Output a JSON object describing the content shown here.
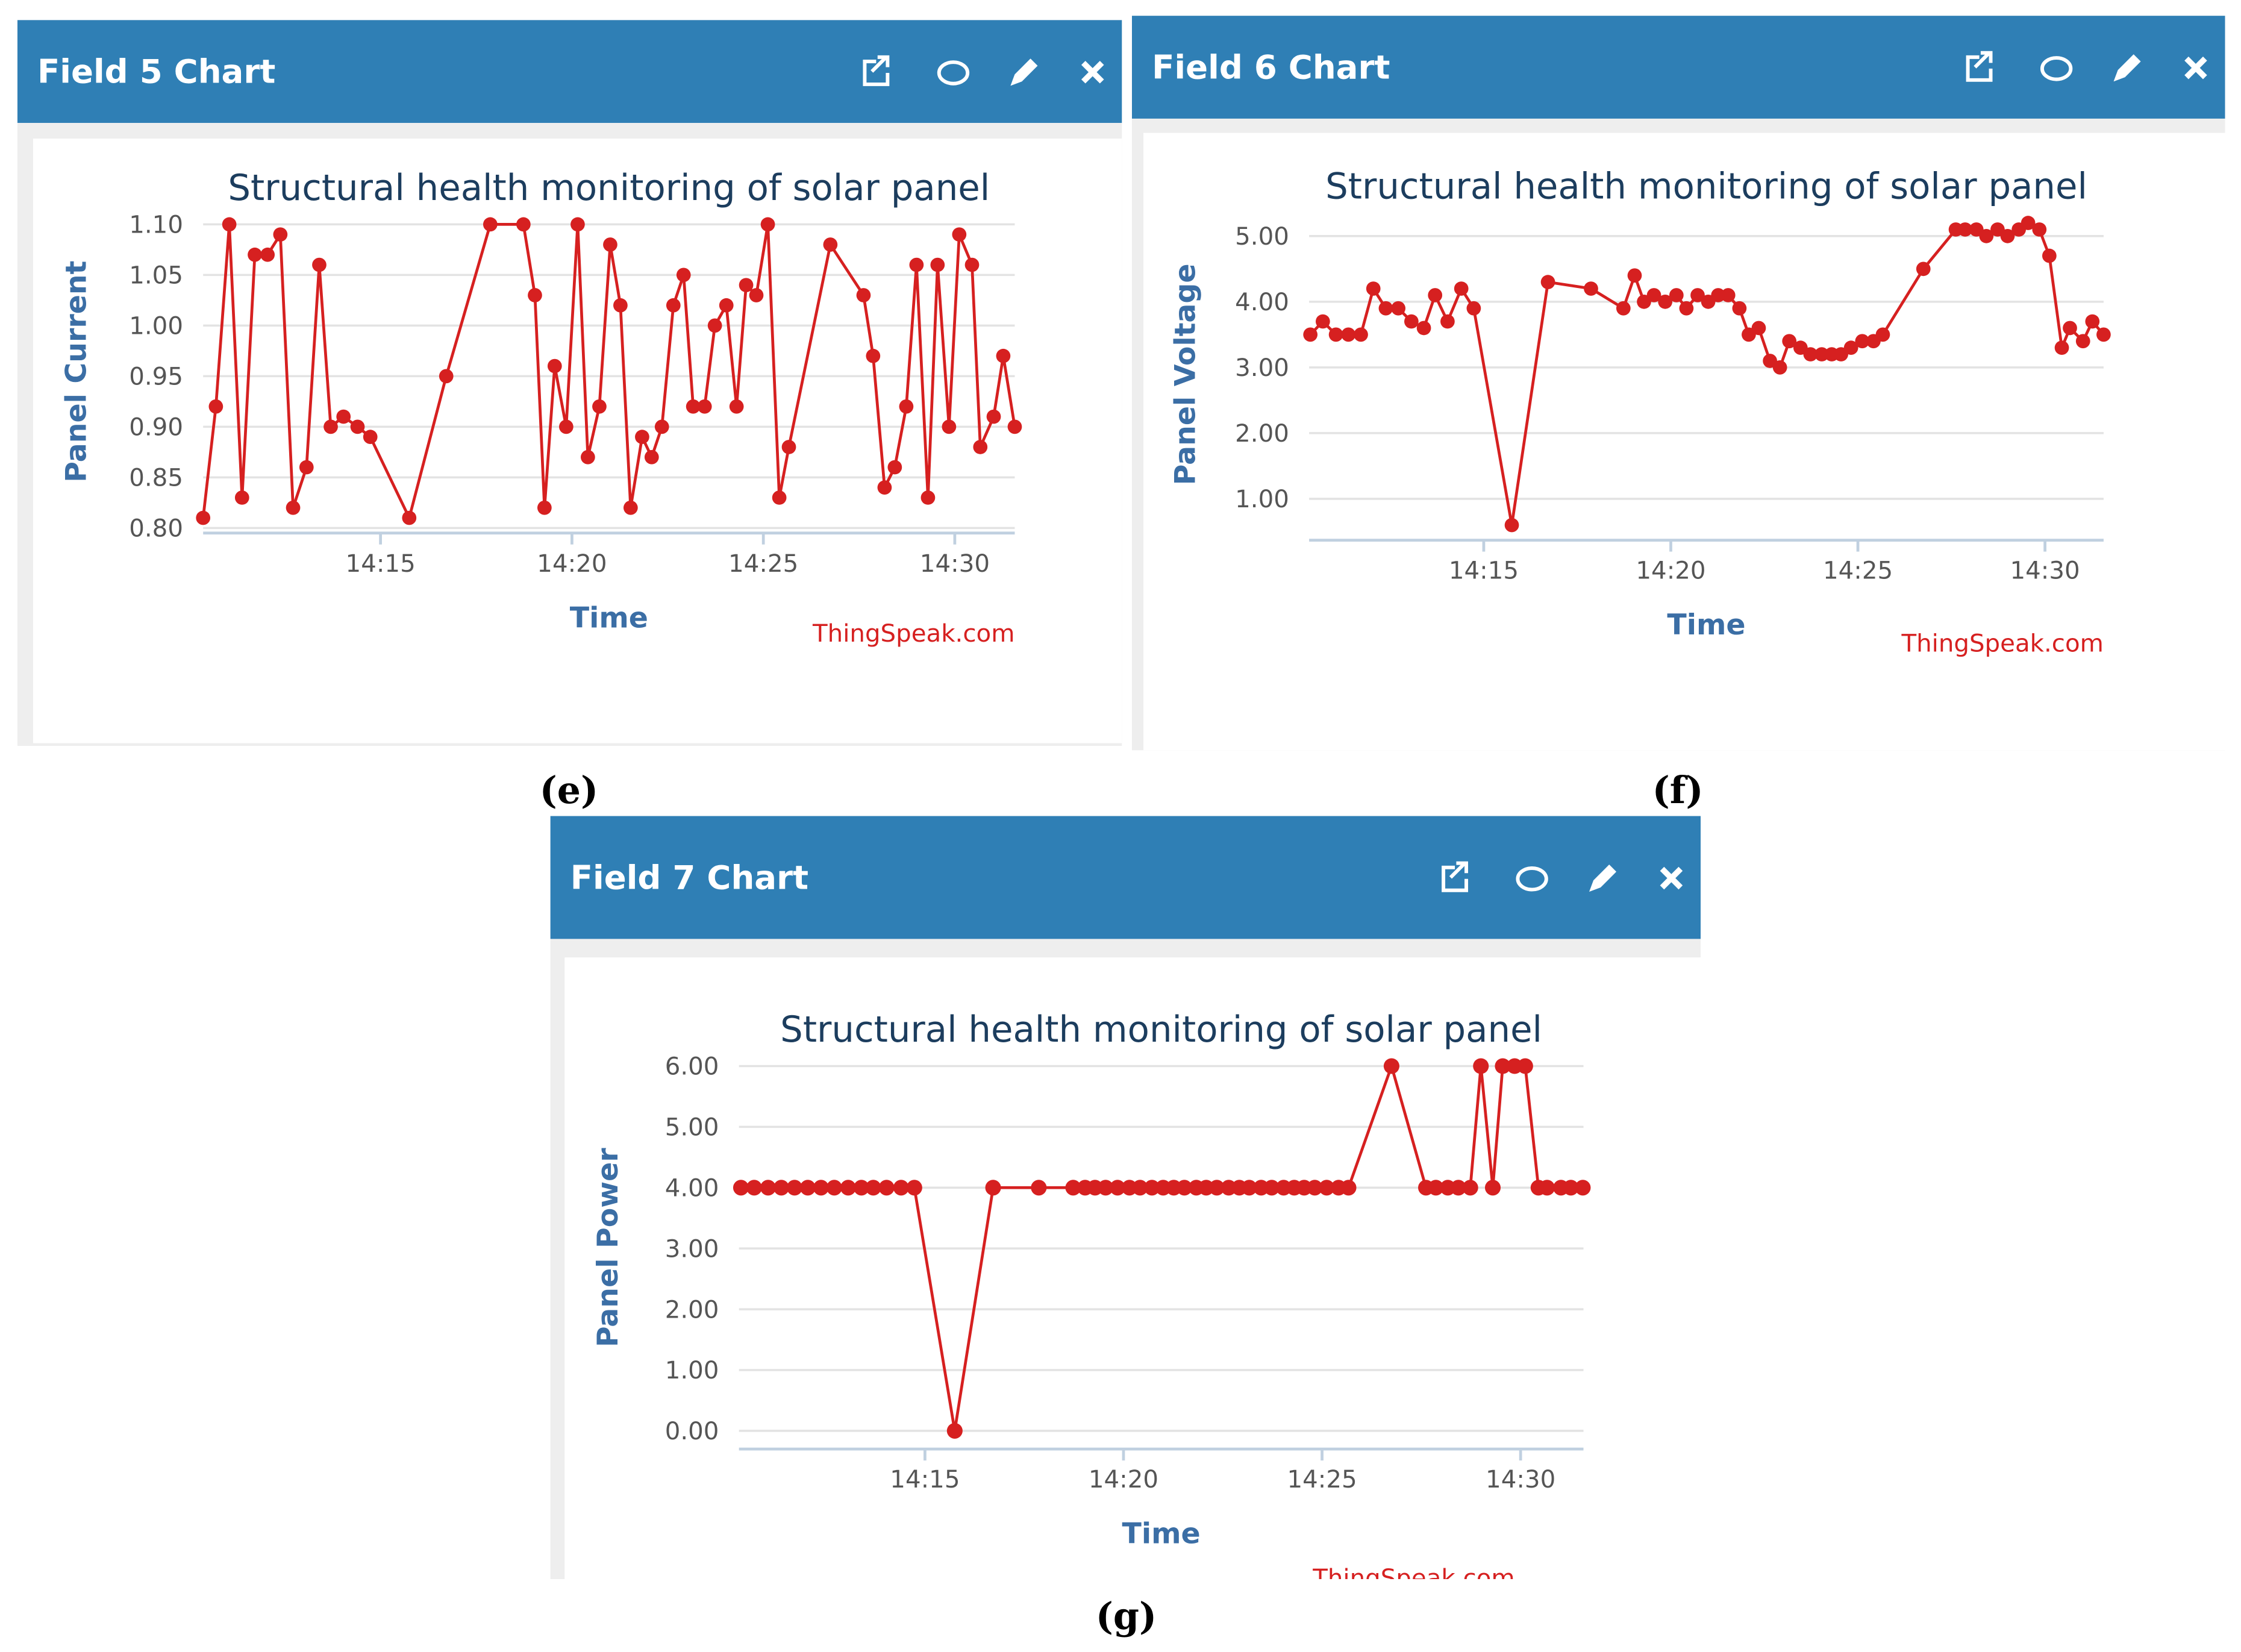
{
  "panels": [
    {
      "header": "Field 5 Chart",
      "caption": "(e)"
    },
    {
      "header": "Field 6 Chart",
      "caption": "(f)"
    },
    {
      "header": "Field 7 Chart",
      "caption": "(g)"
    }
  ],
  "chart_data": [
    {
      "type": "line",
      "title": "Structural health monitoring of solar panel",
      "x_label": "Time",
      "y_label": "Panel Current",
      "credit": "ThingSpeak.com",
      "color": "#d62020",
      "grid": true,
      "x": [
        "14:10:22",
        "14:10:42",
        "14:11:03",
        "14:11:23",
        "14:11:43",
        "14:12:03",
        "14:12:23",
        "14:12:43",
        "14:13:04",
        "14:13:24",
        "14:13:42",
        "14:14:02",
        "14:14:24",
        "14:14:44",
        "14:15:45",
        "14:16:43",
        "14:17:52",
        "14:18:44",
        "14:19:02",
        "14:19:17",
        "14:19:33",
        "14:19:51",
        "14:20:09",
        "14:20:25",
        "14:20:43",
        "14:21:00",
        "14:21:16",
        "14:21:32",
        "14:21:50",
        "14:22:05",
        "14:22:21",
        "14:22:39",
        "14:22:55",
        "14:23:10",
        "14:23:28",
        "14:23:44",
        "14:24:02",
        "14:24:18",
        "14:24:33",
        "14:24:49",
        "14:25:07",
        "14:25:25",
        "14:25:40",
        "14:26:45",
        "14:27:37",
        "14:27:52",
        "14:28:10",
        "14:28:26",
        "14:28:44",
        "14:29:00",
        "14:29:18",
        "14:29:33",
        "14:29:51",
        "14:30:07",
        "14:30:27",
        "14:30:40",
        "14:31:01",
        "14:31:16",
        "14:31:34"
      ],
      "values": [
        0.81,
        0.92,
        1.1,
        0.83,
        1.07,
        1.07,
        1.09,
        0.82,
        0.86,
        1.06,
        0.9,
        0.91,
        0.9,
        0.89,
        0.81,
        0.95,
        1.1,
        1.1,
        1.03,
        0.82,
        0.96,
        0.9,
        1.1,
        0.87,
        0.92,
        1.08,
        1.02,
        0.82,
        0.89,
        0.87,
        0.9,
        1.02,
        1.05,
        0.92,
        0.92,
        1.0,
        1.02,
        0.92,
        1.04,
        1.03,
        1.1,
        0.83,
        0.88,
        1.08,
        1.03,
        0.97,
        0.84,
        0.86,
        0.92,
        1.06,
        0.83,
        1.06,
        0.9,
        1.09,
        1.06,
        0.88,
        0.91,
        0.97,
        0.9
      ],
      "xlim": [
        "14:10:22",
        "14:31:34"
      ],
      "xticks": [
        "14:15",
        "14:20",
        "14:25",
        "14:30"
      ],
      "ylim": [
        0.795,
        1.1
      ],
      "yticks": [
        {
          "value": 0.8,
          "label": "0.80"
        },
        0.85,
        {
          "value": 0.9,
          "label": "0.90"
        },
        0.95,
        {
          "value": 1,
          "label": "1.00"
        },
        1.05,
        {
          "value": 1.1,
          "label": "1.10"
        }
      ]
    },
    {
      "type": "line",
      "title": "Structural health monitoring of solar panel",
      "x_label": "Time",
      "y_label": "Panel Voltage",
      "credit": "ThingSpeak.com",
      "color": "#d62020",
      "grid": true,
      "x": [
        "14:10:22",
        "14:10:42",
        "14:11:03",
        "14:11:23",
        "14:11:43",
        "14:12:03",
        "14:12:23",
        "14:12:43",
        "14:13:04",
        "14:13:24",
        "14:13:42",
        "14:14:02",
        "14:14:24",
        "14:14:44",
        "14:15:45",
        "14:16:43",
        "14:17:52",
        "14:18:44",
        "14:19:02",
        "14:19:17",
        "14:19:33",
        "14:19:51",
        "14:20:09",
        "14:20:25",
        "14:20:43",
        "14:21:00",
        "14:21:16",
        "14:21:32",
        "14:21:50",
        "14:22:05",
        "14:22:21",
        "14:22:39",
        "14:22:55",
        "14:23:10",
        "14:23:28",
        "14:23:44",
        "14:24:02",
        "14:24:18",
        "14:24:33",
        "14:24:49",
        "14:25:07",
        "14:25:25",
        "14:25:40",
        "14:26:45",
        "14:27:37",
        "14:27:52",
        "14:28:10",
        "14:28:26",
        "14:28:44",
        "14:29:00",
        "14:29:18",
        "14:29:33",
        "14:29:51",
        "14:30:07",
        "14:30:27",
        "14:30:40",
        "14:31:01",
        "14:31:16",
        "14:31:34"
      ],
      "values": [
        3.5,
        3.7,
        3.5,
        3.5,
        3.5,
        4.2,
        3.9,
        3.9,
        3.7,
        3.6,
        4.1,
        3.7,
        4.2,
        3.9,
        0.6,
        4.3,
        4.2,
        3.9,
        4.4,
        4.0,
        4.1,
        4.0,
        4.1,
        3.9,
        4.1,
        4.0,
        4.1,
        4.1,
        3.9,
        3.5,
        3.6,
        3.1,
        3.0,
        3.4,
        3.3,
        3.2,
        3.2,
        3.2,
        3.2,
        3.3,
        3.4,
        3.4,
        3.5,
        4.5,
        5.1,
        5.1,
        5.1,
        5.0,
        5.1,
        5.0,
        5.1,
        5.2,
        5.1,
        4.7,
        3.3,
        3.6,
        3.4,
        3.7,
        3.5
      ],
      "xlim": [
        "14:10:20",
        "14:31:34"
      ],
      "xticks": [
        "14:15",
        "14:20",
        "14:25",
        "14:30"
      ],
      "ylim": [
        0.37,
        5.2
      ],
      "yticks": [
        {
          "value": 1,
          "label": "1.00"
        },
        {
          "value": 2,
          "label": "2.00"
        },
        {
          "value": 3,
          "label": "3.00"
        },
        {
          "value": 4,
          "label": "4.00"
        },
        {
          "value": 5,
          "label": "5.00"
        }
      ]
    },
    {
      "type": "line",
      "title": "Structural health monitoring of solar panel",
      "x_label": "Time",
      "y_label": "Panel Power",
      "credit": "ThingSpeak.com",
      "color": "#d62020",
      "grid": true,
      "x": [
        "14:10:22",
        "14:10:42",
        "14:11:03",
        "14:11:23",
        "14:11:43",
        "14:12:03",
        "14:12:23",
        "14:12:43",
        "14:13:04",
        "14:13:24",
        "14:13:42",
        "14:14:02",
        "14:14:24",
        "14:14:44",
        "14:15:45",
        "14:16:43",
        "14:17:52",
        "14:18:44",
        "14:19:02",
        "14:19:17",
        "14:19:33",
        "14:19:51",
        "14:20:09",
        "14:20:25",
        "14:20:43",
        "14:21:00",
        "14:21:16",
        "14:21:32",
        "14:21:50",
        "14:22:05",
        "14:22:21",
        "14:22:39",
        "14:22:55",
        "14:23:10",
        "14:23:28",
        "14:23:44",
        "14:24:02",
        "14:24:18",
        "14:24:33",
        "14:24:49",
        "14:25:07",
        "14:25:25",
        "14:25:40",
        "14:26:45",
        "14:27:37",
        "14:27:52",
        "14:28:10",
        "14:28:26",
        "14:28:44",
        "14:29:00",
        "14:29:18",
        "14:29:33",
        "14:29:51",
        "14:30:07",
        "14:30:27",
        "14:30:40",
        "14:31:01",
        "14:31:16",
        "14:31:34"
      ],
      "values": [
        4,
        4,
        4,
        4,
        4,
        4,
        4,
        4,
        4,
        4,
        4,
        4,
        4,
        4,
        0,
        4,
        4,
        4,
        4,
        4,
        4,
        4,
        4,
        4,
        4,
        4,
        4,
        4,
        4,
        4,
        4,
        4,
        4,
        4,
        4,
        4,
        4,
        4,
        4,
        4,
        4,
        4,
        4,
        6,
        4,
        4,
        4,
        4,
        4,
        6,
        4,
        6,
        6,
        6,
        4,
        4,
        4,
        4,
        4
      ],
      "xlim": [
        "14:10:19",
        "14:31:35"
      ],
      "xticks": [
        "14:15",
        "14:20",
        "14:25",
        "14:30"
      ],
      "ylim": [
        -0.3,
        6
      ],
      "yticks": [
        {
          "value": 0,
          "label": "0.00"
        },
        {
          "value": 1,
          "label": "1.00"
        },
        {
          "value": 2,
          "label": "2.00"
        },
        {
          "value": 3,
          "label": "3.00"
        },
        {
          "value": 4,
          "label": "4.00"
        },
        {
          "value": 5,
          "label": "5.00"
        },
        {
          "value": 6,
          "label": "6.00"
        }
      ]
    }
  ]
}
